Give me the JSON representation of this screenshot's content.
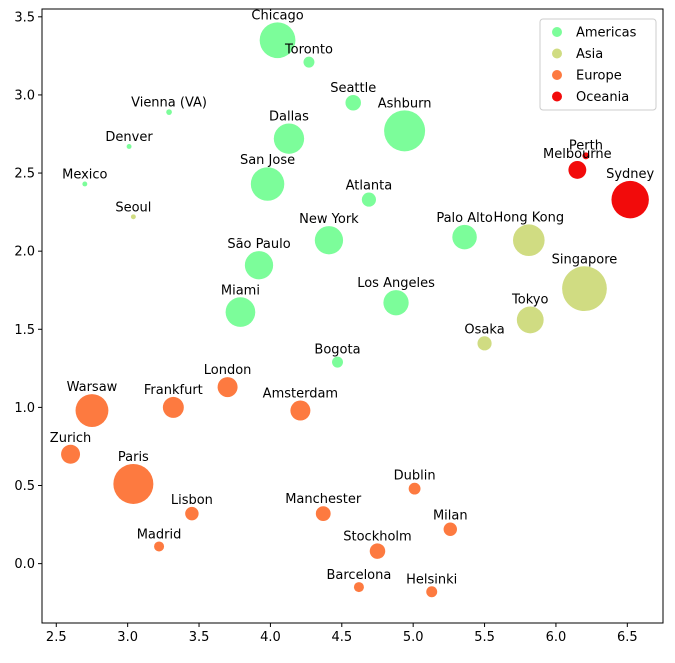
{
  "chart_data": {
    "type": "scatter",
    "xlim": [
      2.4,
      6.75
    ],
    "ylim": [
      -0.38,
      3.55
    ],
    "xticks": [
      "2.5",
      "3.0",
      "3.5",
      "4.0",
      "4.5",
      "5.0",
      "5.5",
      "6.0",
      "6.5"
    ],
    "yticks": [
      "0.0",
      "0.5",
      "1.0",
      "1.5",
      "2.0",
      "2.5",
      "3.0",
      "3.5"
    ],
    "grid": false,
    "legend_position": "top-right",
    "groups": [
      {
        "name": "Americas",
        "color": "#7cfd9a"
      },
      {
        "name": "Asia",
        "color": "#d0dc82"
      },
      {
        "name": "Europe",
        "color": "#fd7a40"
      },
      {
        "name": "Oceania",
        "color": "#f20b0b"
      }
    ],
    "points": [
      {
        "label": "Chicago",
        "group": "Americas",
        "x": 4.05,
        "y": 3.35,
        "size": 320
      },
      {
        "label": "Toronto",
        "group": "Americas",
        "x": 4.27,
        "y": 3.21,
        "size": 30
      },
      {
        "label": "Vienna (VA)",
        "group": "Americas",
        "x": 3.29,
        "y": 2.89,
        "size": 8
      },
      {
        "label": "Seattle",
        "group": "Americas",
        "x": 4.58,
        "y": 2.95,
        "size": 60
      },
      {
        "label": "Ashburn",
        "group": "Americas",
        "x": 4.94,
        "y": 2.77,
        "size": 420
      },
      {
        "label": "Denver",
        "group": "Americas",
        "x": 3.01,
        "y": 2.67,
        "size": 6
      },
      {
        "label": "Dallas",
        "group": "Americas",
        "x": 4.13,
        "y": 2.72,
        "size": 230
      },
      {
        "label": "Mexico",
        "group": "Americas",
        "x": 2.7,
        "y": 2.43,
        "size": 6
      },
      {
        "label": "San Jose",
        "group": "Americas",
        "x": 3.98,
        "y": 2.43,
        "size": 280
      },
      {
        "label": "Atlanta",
        "group": "Americas",
        "x": 4.69,
        "y": 2.33,
        "size": 50
      },
      {
        "label": "New York",
        "group": "Americas",
        "x": 4.41,
        "y": 2.07,
        "size": 200
      },
      {
        "label": "Palo Alto",
        "group": "Americas",
        "x": 5.36,
        "y": 2.09,
        "size": 150
      },
      {
        "label": "São Paulo",
        "group": "Americas",
        "x": 3.92,
        "y": 1.91,
        "size": 200
      },
      {
        "label": "Los Angeles",
        "group": "Americas",
        "x": 4.88,
        "y": 1.67,
        "size": 160
      },
      {
        "label": "Miami",
        "group": "Americas",
        "x": 3.79,
        "y": 1.61,
        "size": 220
      },
      {
        "label": "Bogota",
        "group": "Americas",
        "x": 4.47,
        "y": 1.29,
        "size": 30
      },
      {
        "label": "Seoul",
        "group": "Asia",
        "x": 3.04,
        "y": 2.22,
        "size": 6
      },
      {
        "label": "Hong Kong",
        "group": "Asia",
        "x": 5.81,
        "y": 2.07,
        "size": 250
      },
      {
        "label": "Singapore",
        "group": "Asia",
        "x": 6.2,
        "y": 1.76,
        "size": 500
      },
      {
        "label": "Tokyo",
        "group": "Asia",
        "x": 5.82,
        "y": 1.56,
        "size": 180
      },
      {
        "label": "Osaka",
        "group": "Asia",
        "x": 5.5,
        "y": 1.41,
        "size": 50
      },
      {
        "label": "London",
        "group": "Europe",
        "x": 3.7,
        "y": 1.13,
        "size": 100
      },
      {
        "label": "Warsaw",
        "group": "Europe",
        "x": 2.75,
        "y": 0.98,
        "size": 270
      },
      {
        "label": "Frankfurt",
        "group": "Europe",
        "x": 3.32,
        "y": 1.0,
        "size": 110
      },
      {
        "label": "Amsterdam",
        "group": "Europe",
        "x": 4.21,
        "y": 0.98,
        "size": 100
      },
      {
        "label": "Zurich",
        "group": "Europe",
        "x": 2.6,
        "y": 0.7,
        "size": 90
      },
      {
        "label": "Paris",
        "group": "Europe",
        "x": 3.04,
        "y": 0.51,
        "size": 400
      },
      {
        "label": "Dublin",
        "group": "Europe",
        "x": 5.01,
        "y": 0.48,
        "size": 35
      },
      {
        "label": "Lisbon",
        "group": "Europe",
        "x": 3.45,
        "y": 0.32,
        "size": 45
      },
      {
        "label": "Manchester",
        "group": "Europe",
        "x": 4.37,
        "y": 0.32,
        "size": 55
      },
      {
        "label": "Milan",
        "group": "Europe",
        "x": 5.26,
        "y": 0.22,
        "size": 45
      },
      {
        "label": "Madrid",
        "group": "Europe",
        "x": 3.22,
        "y": 0.11,
        "size": 25
      },
      {
        "label": "Stockholm",
        "group": "Europe",
        "x": 4.75,
        "y": 0.08,
        "size": 60
      },
      {
        "label": "Barcelona",
        "group": "Europe",
        "x": 4.62,
        "y": -0.15,
        "size": 25
      },
      {
        "label": "Helsinki",
        "group": "Europe",
        "x": 5.13,
        "y": -0.18,
        "size": 30
      },
      {
        "label": "Perth",
        "group": "Oceania",
        "x": 6.21,
        "y": 2.61,
        "size": 12
      },
      {
        "label": "Melbourne",
        "group": "Oceania",
        "x": 6.15,
        "y": 2.52,
        "size": 80
      },
      {
        "label": "Sydney",
        "group": "Oceania",
        "x": 6.52,
        "y": 2.33,
        "size": 350
      }
    ]
  }
}
